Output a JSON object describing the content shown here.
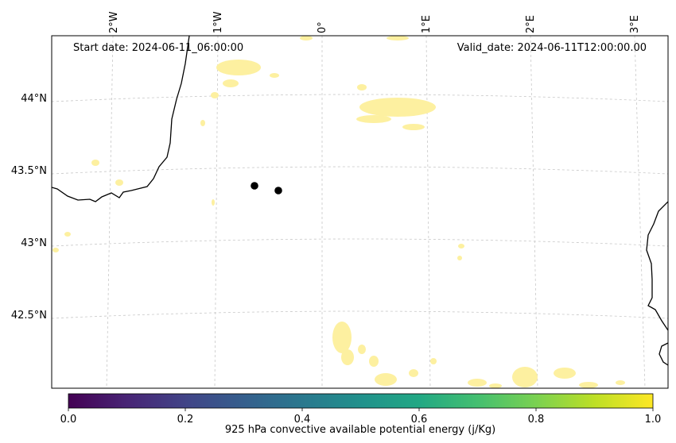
{
  "map": {
    "start_date": "Start date: 2024-06-11_06:00:00",
    "valid_date": "Valid_date: 2024-06-11T12:00:00.00",
    "lon_labels": [
      "2°W",
      "1°W",
      "0°",
      "1°E",
      "2°E",
      "3°E"
    ],
    "lat_labels": [
      "44°N",
      "43.5°N",
      "43°N",
      "42.5°N"
    ],
    "gridlines": true,
    "markers": [
      {
        "lon": -0.38,
        "lat": 43.39
      },
      {
        "lon": -0.16,
        "lat": 43.37
      }
    ]
  },
  "colorbar": {
    "label": "925 hPa convective available potential energy (j/Kg)",
    "colormap": "viridis",
    "range": [
      0.0,
      1.0
    ],
    "ticks": [
      "0.0",
      "0.2",
      "0.4",
      "0.6",
      "0.8",
      "1.0"
    ]
  },
  "colors": {
    "field_fill": "#fdf0a0",
    "coastline": "#000000",
    "marker": "#000000"
  }
}
